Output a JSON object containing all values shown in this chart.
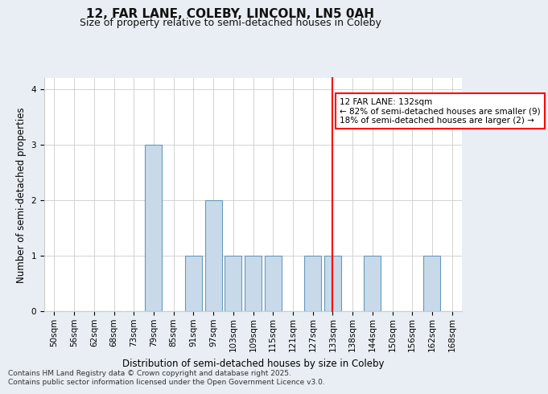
{
  "title": "12, FAR LANE, COLEBY, LINCOLN, LN5 0AH",
  "subtitle": "Size of property relative to semi-detached houses in Coleby",
  "xlabel": "Distribution of semi-detached houses by size in Coleby",
  "ylabel": "Number of semi-detached properties",
  "categories": [
    "50sqm",
    "56sqm",
    "62sqm",
    "68sqm",
    "73sqm",
    "79sqm",
    "85sqm",
    "91sqm",
    "97sqm",
    "103sqm",
    "109sqm",
    "115sqm",
    "121sqm",
    "127sqm",
    "133sqm",
    "138sqm",
    "144sqm",
    "150sqm",
    "156sqm",
    "162sqm",
    "168sqm"
  ],
  "values": [
    0,
    0,
    0,
    0,
    0,
    3,
    0,
    1,
    2,
    1,
    1,
    1,
    0,
    1,
    1,
    0,
    1,
    0,
    0,
    1,
    0
  ],
  "bar_color": "#c8daea",
  "bar_edge_color": "#6699bb",
  "red_line_index": 14,
  "annotation_title": "12 FAR LANE: 132sqm",
  "annotation_line1": "← 82% of semi-detached houses are smaller (9)",
  "annotation_line2": "18% of semi-detached houses are larger (2) →",
  "ylim": [
    0,
    4.2
  ],
  "yticks": [
    0,
    1,
    2,
    3,
    4
  ],
  "bg_color": "#e8eef4",
  "plot_bg_color": "#ffffff",
  "footer1": "Contains HM Land Registry data © Crown copyright and database right 2025.",
  "footer2": "Contains public sector information licensed under the Open Government Licence v3.0.",
  "grid_color": "#cccccc",
  "title_fontsize": 11,
  "subtitle_fontsize": 9,
  "axis_label_fontsize": 8.5,
  "tick_fontsize": 7.5,
  "annotation_fontsize": 7.5,
  "footer_fontsize": 6.5
}
